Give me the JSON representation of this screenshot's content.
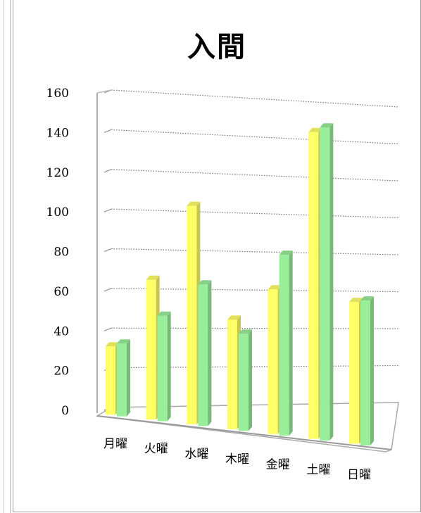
{
  "chart_data": {
    "type": "bar",
    "title": "入間",
    "categories": [
      "月曜",
      "火曜",
      "水曜",
      "木曜",
      "金曜",
      "土曜",
      "日曜"
    ],
    "series": [
      {
        "values": [
          34,
          68,
          104,
          51,
          66,
          137,
          62
        ],
        "color": "#ffff66"
      },
      {
        "values": [
          36,
          51,
          67,
          45,
          82,
          139,
          63
        ],
        "color": "#99ee99"
      }
    ],
    "ylim": [
      0,
      160
    ],
    "yticks": [
      0,
      20,
      40,
      60,
      80,
      100,
      120,
      140,
      160
    ],
    "grid": true,
    "legend": "none"
  }
}
